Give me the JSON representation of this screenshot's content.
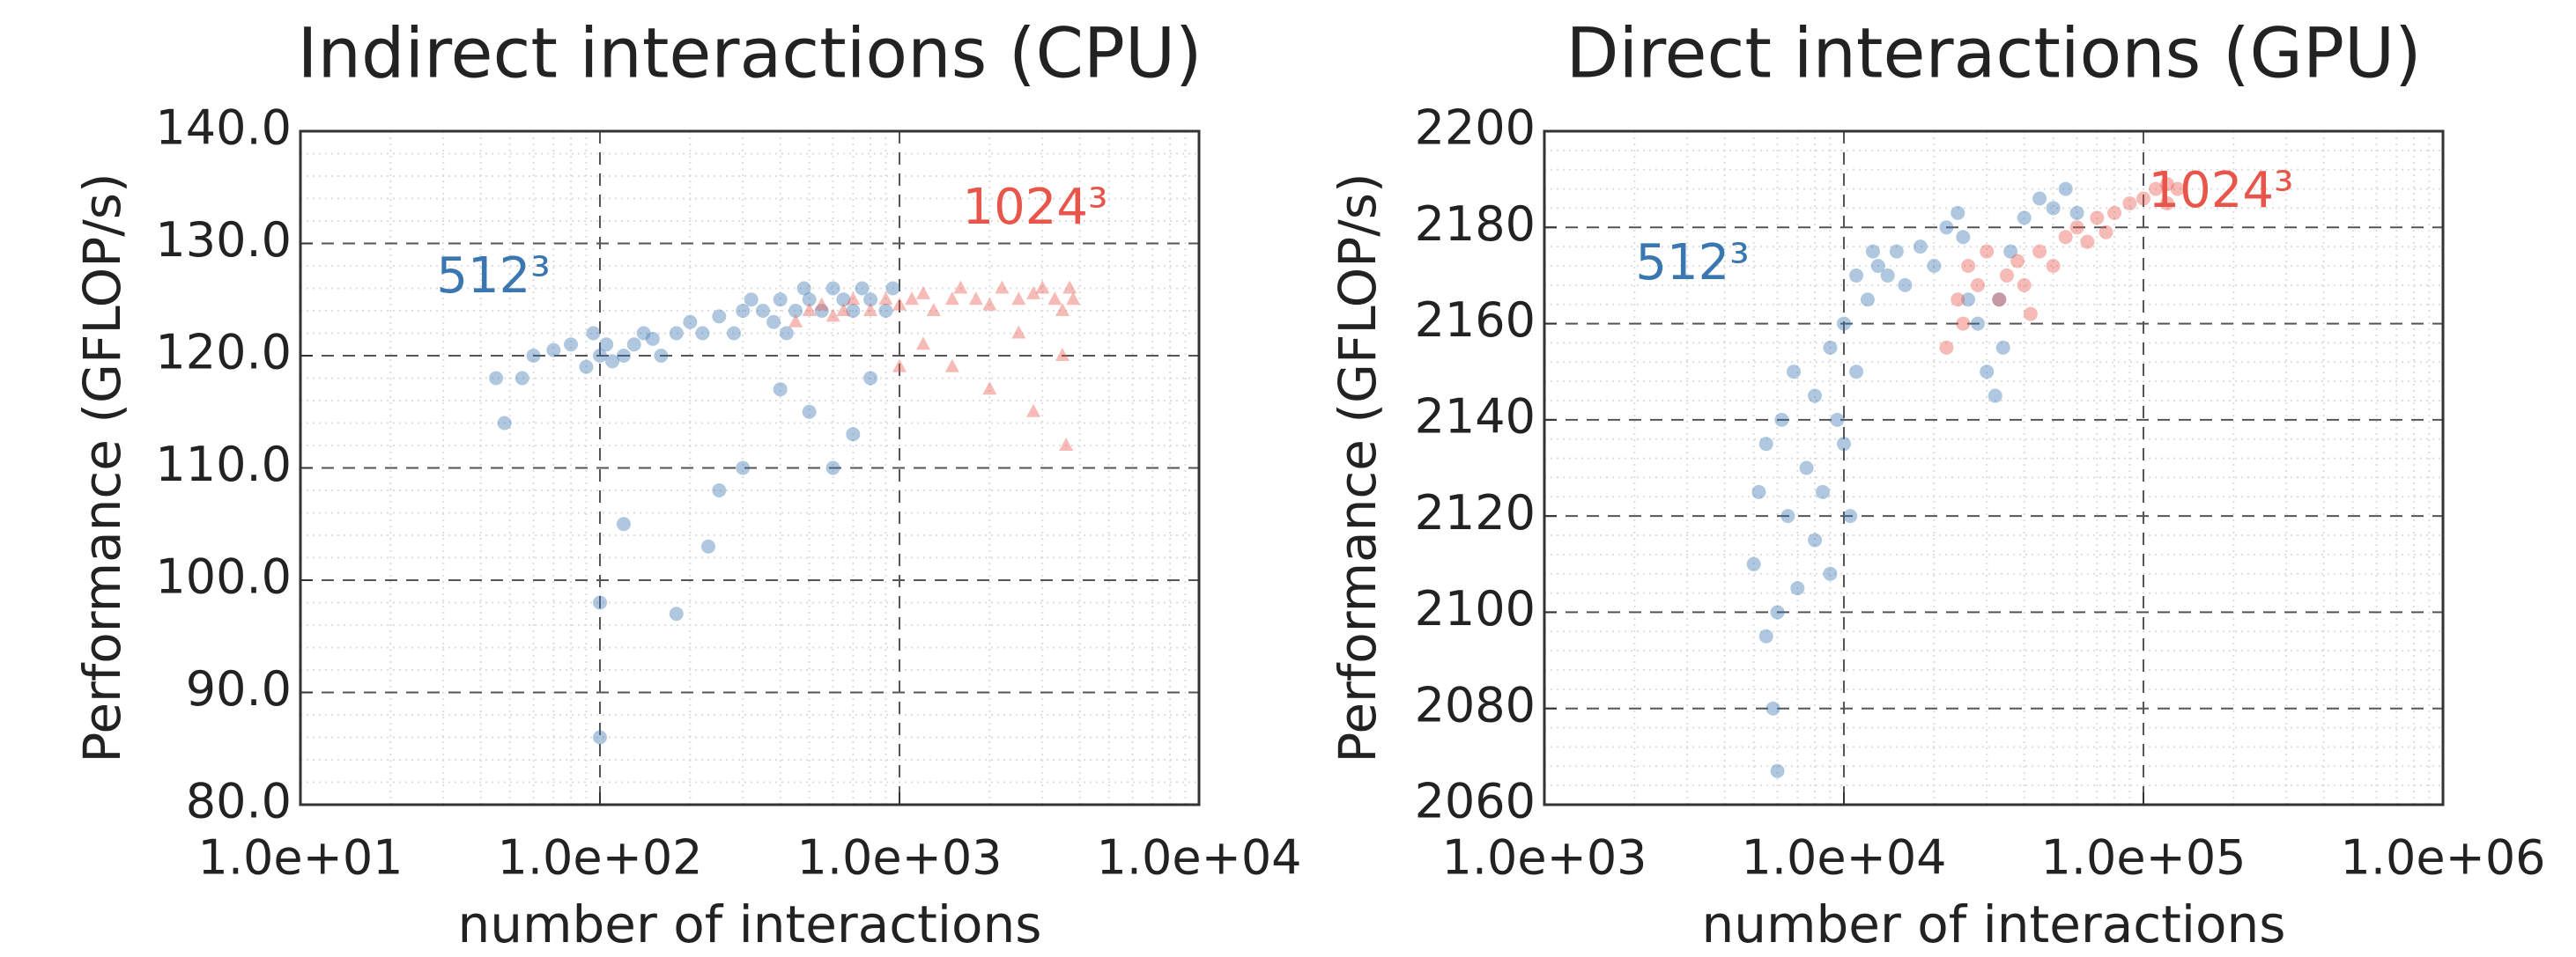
{
  "chart_data": [
    {
      "type": "scatter",
      "title": "Indirect interactions (CPU)",
      "xlabel": "number of interactions",
      "ylabel": "Performance (GFLOP/s)",
      "xscale": "log",
      "grid": true,
      "xlim": [
        10,
        10000
      ],
      "xticks": [
        {
          "value": 10,
          "label": "1.0e+01"
        },
        {
          "value": 100,
          "label": "1.0e+02"
        },
        {
          "value": 1000,
          "label": "1.0e+03"
        },
        {
          "value": 10000,
          "label": "1.0e+04"
        }
      ],
      "ylim": [
        80,
        140
      ],
      "yticks": [
        {
          "value": 80,
          "label": "80.0"
        },
        {
          "value": 90,
          "label": "90.0"
        },
        {
          "value": 100,
          "label": "100.0"
        },
        {
          "value": 110,
          "label": "110.0"
        },
        {
          "value": 120,
          "label": "120.0"
        },
        {
          "value": 130,
          "label": "130.0"
        },
        {
          "value": 140,
          "label": "140.0"
        }
      ],
      "series": [
        {
          "name": "512³",
          "color": "#3a76b0",
          "marker": "circle",
          "x": [
            45,
            48,
            55,
            60,
            70,
            80,
            90,
            95,
            100,
            100,
            100,
            105,
            110,
            120,
            130,
            140,
            150,
            160,
            180,
            200,
            220,
            250,
            250,
            280,
            300,
            320,
            350,
            380,
            400,
            420,
            450,
            480,
            500,
            500,
            550,
            600,
            600,
            650,
            700,
            700,
            750,
            800,
            800,
            900,
            950,
            180,
            230,
            300,
            120,
            400
          ],
          "values": [
            118,
            114,
            118,
            120,
            120.5,
            121,
            119,
            122,
            120,
            98,
            86,
            121,
            119.5,
            120,
            121,
            122,
            121.5,
            120,
            122,
            123,
            122,
            123.5,
            108,
            122,
            124,
            125,
            124,
            123,
            125,
            122,
            124,
            126,
            125,
            115,
            124,
            126,
            110,
            125,
            124,
            113,
            126,
            125,
            118,
            124,
            126,
            97,
            103,
            110,
            105,
            117
          ]
        },
        {
          "name": "1024³",
          "color": "#e8554a",
          "marker": "triangle",
          "x": [
            450,
            500,
            550,
            600,
            650,
            700,
            800,
            900,
            1000,
            1100,
            1200,
            1300,
            1500,
            1600,
            1800,
            2000,
            2200,
            2500,
            2800,
            3000,
            3300,
            3500,
            3700,
            3800,
            3500,
            2000,
            1500,
            1000,
            2800,
            3600,
            1200,
            2500
          ],
          "values": [
            123,
            124,
            124.5,
            123.5,
            124,
            125,
            124,
            125,
            124.5,
            125,
            125.5,
            124,
            125,
            126,
            125,
            124.5,
            126,
            125,
            125.5,
            126,
            125,
            124,
            126,
            125,
            120,
            117,
            119,
            119,
            115,
            112,
            121,
            122
          ]
        }
      ]
    },
    {
      "type": "scatter",
      "title": "Direct interactions (GPU)",
      "xlabel": "number of interactions",
      "ylabel": "Performance (GFLOP/s)",
      "xscale": "log",
      "grid": true,
      "xlim": [
        1000,
        1000000
      ],
      "xticks": [
        {
          "value": 1000,
          "label": "1.0e+03"
        },
        {
          "value": 10000,
          "label": "1.0e+04"
        },
        {
          "value": 100000,
          "label": "1.0e+05"
        },
        {
          "value": 1000000,
          "label": "1.0e+06"
        }
      ],
      "ylim": [
        2060,
        2200
      ],
      "yticks": [
        2060,
        2080,
        2100,
        2120,
        2140,
        2160,
        2180,
        2200
      ],
      "series": [
        {
          "name": "512³",
          "color": "#3a76b0",
          "marker": "circle",
          "x": [
            5000,
            5200,
            5500,
            5500,
            5800,
            6000,
            6000,
            6200,
            6500,
            6800,
            7000,
            7500,
            8000,
            8000,
            8500,
            9000,
            9500,
            10000,
            10000,
            10500,
            11000,
            11000,
            12000,
            13000,
            14000,
            15000,
            16000,
            18000,
            20000,
            22000,
            24000,
            26000,
            28000,
            30000,
            32000,
            34000,
            36000,
            40000,
            45000,
            50000,
            55000,
            60000,
            25000,
            33000,
            12500,
            9000
          ],
          "values": [
            2110,
            2125,
            2135,
            2095,
            2080,
            2067,
            2100,
            2140,
            2120,
            2150,
            2105,
            2130,
            2145,
            2115,
            2125,
            2155,
            2140,
            2135,
            2160,
            2120,
            2150,
            2170,
            2165,
            2172,
            2170,
            2175,
            2168,
            2176,
            2172,
            2180,
            2183,
            2165,
            2160,
            2150,
            2145,
            2155,
            2175,
            2182,
            2186,
            2184,
            2188,
            2183,
            2178,
            2165,
            2175,
            2108
          ]
        },
        {
          "name": "1024³",
          "color": "#e8554a",
          "marker": "circle",
          "x": [
            22000,
            24000,
            26000,
            28000,
            30000,
            33000,
            35000,
            38000,
            40000,
            45000,
            50000,
            55000,
            60000,
            65000,
            70000,
            80000,
            90000,
            100000,
            110000,
            120000,
            130000,
            120000,
            75000,
            42000,
            25000
          ],
          "values": [
            2155,
            2165,
            2172,
            2168,
            2175,
            2165,
            2170,
            2173,
            2168,
            2175,
            2172,
            2178,
            2180,
            2177,
            2182,
            2183,
            2185,
            2186,
            2188,
            2189,
            2188,
            2185,
            2179,
            2162,
            2160
          ]
        }
      ]
    }
  ]
}
